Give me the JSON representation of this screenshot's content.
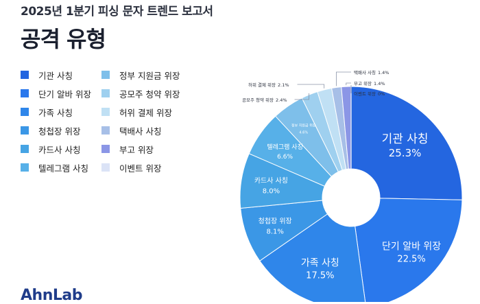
{
  "header": {
    "report_title": "2025년 1분기 피싱 문자 트렌드 보고서",
    "page_title": "공격 유형"
  },
  "footer": {
    "brand": "AhnLab"
  },
  "chart_data": {
    "type": "pie",
    "style": "donut",
    "legend_position": "left",
    "categories": [
      "기관 사칭",
      "단기 알바 위장",
      "가족 사칭",
      "청첩장 위장",
      "카드사 사칭",
      "텔레그램 사칭",
      "정부 지원금 위장",
      "공모주 청약 위장",
      "허위 결제 위장",
      "택배사 사칭",
      "부고 위장",
      "이벤트 위장"
    ],
    "values": [
      25.3,
      22.5,
      17.5,
      8.1,
      8.0,
      6.6,
      4.6,
      2.4,
      2.1,
      1.4,
      1.4,
      0
    ],
    "value_labels": [
      "25.3%",
      "22.5%",
      "17.5%",
      "8.1%",
      "8.0%",
      "6.6%",
      "4.6%",
      "2.4%",
      "2.1%",
      "1.4%",
      "1.4%",
      "0%"
    ],
    "colors": [
      "#2466e0",
      "#2a78ec",
      "#2f86ea",
      "#3b97e6",
      "#46a4e4",
      "#57b0e8",
      "#7ebfea",
      "#9fd0ef",
      "#c0e0f4",
      "#a7bfe7",
      "#8b96e6",
      "#dbe3f6"
    ]
  }
}
